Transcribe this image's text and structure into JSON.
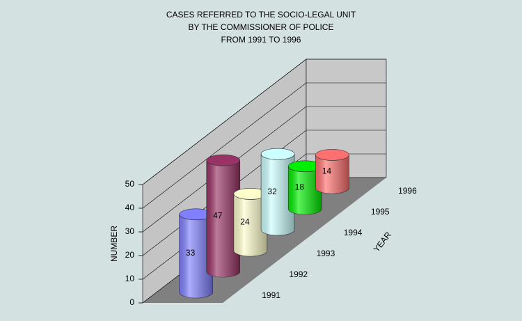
{
  "chart_data": {
    "type": "bar",
    "title": [
      "CASES REFERRED TO THE SOCIO-LEGAL UNIT",
      "BY THE COMMISSIONER OF POLICE",
      "FROM 1991 TO 1996"
    ],
    "x_label": "YEAR",
    "y_label": "NUMBER",
    "categories": [
      "1991",
      "1992",
      "1993",
      "1994",
      "1995",
      "1996"
    ],
    "values": [
      33,
      47,
      24,
      32,
      18,
      14
    ],
    "colors": [
      "#8080ff",
      "#993366",
      "#ffffcc",
      "#ccffff",
      "#00ee00",
      "#ff7070"
    ],
    "ylim": [
      0,
      50
    ],
    "yticks": [
      0,
      10,
      20,
      30,
      40,
      50
    ],
    "grid": true
  }
}
